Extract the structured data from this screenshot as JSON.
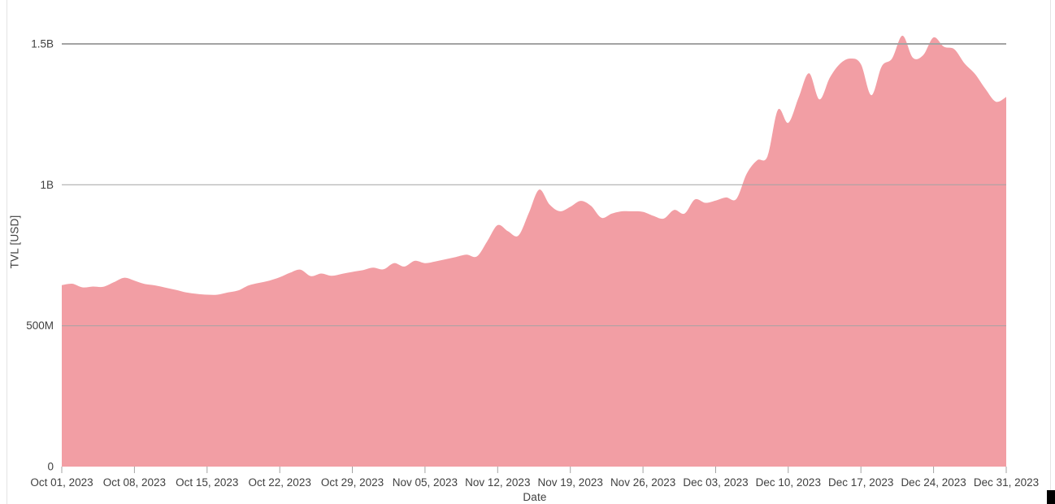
{
  "chart_data": {
    "type": "area",
    "title": "",
    "xlabel": "Date",
    "ylabel": "TVL [USD]",
    "legend": "none",
    "grid": true,
    "area_color": "#f29ea4",
    "gridline_color": "#a3a3a3",
    "axis_text_color": "#404040",
    "ylim_musd": [
      0,
      1550
    ],
    "y_ticks": [
      {
        "label": "0",
        "value": 0
      },
      {
        "label": "500M",
        "value": 500
      },
      {
        "label": "1B",
        "value": 1000
      },
      {
        "label": "1.5B",
        "value": 1500
      }
    ],
    "x_tick_labels": [
      "Oct 01, 2023",
      "Oct 08, 2023",
      "Oct 15, 2023",
      "Oct 22, 2023",
      "Oct 29, 2023",
      "Nov 05, 2023",
      "Nov 12, 2023",
      "Nov 19, 2023",
      "Nov 26, 2023",
      "Dec 03, 2023",
      "Dec 10, 2023",
      "Dec 17, 2023",
      "Dec 24, 2023",
      "Dec 31, 2023"
    ],
    "x_tick_interval_days": 7,
    "series": [
      {
        "name": "TVL",
        "unit": "USD (millions)",
        "dates": [
          "2023-10-01",
          "2023-10-02",
          "2023-10-03",
          "2023-10-04",
          "2023-10-05",
          "2023-10-06",
          "2023-10-07",
          "2023-10-08",
          "2023-10-09",
          "2023-10-10",
          "2023-10-11",
          "2023-10-12",
          "2023-10-13",
          "2023-10-14",
          "2023-10-15",
          "2023-10-16",
          "2023-10-17",
          "2023-10-18",
          "2023-10-19",
          "2023-10-20",
          "2023-10-21",
          "2023-10-22",
          "2023-10-23",
          "2023-10-24",
          "2023-10-25",
          "2023-10-26",
          "2023-10-27",
          "2023-10-28",
          "2023-10-29",
          "2023-10-30",
          "2023-10-31",
          "2023-11-01",
          "2023-11-02",
          "2023-11-03",
          "2023-11-04",
          "2023-11-05",
          "2023-11-06",
          "2023-11-07",
          "2023-11-08",
          "2023-11-09",
          "2023-11-10",
          "2023-11-11",
          "2023-11-12",
          "2023-11-13",
          "2023-11-14",
          "2023-11-15",
          "2023-11-16",
          "2023-11-17",
          "2023-11-18",
          "2023-11-19",
          "2023-11-20",
          "2023-11-21",
          "2023-11-22",
          "2023-11-23",
          "2023-11-24",
          "2023-11-25",
          "2023-11-26",
          "2023-11-27",
          "2023-11-28",
          "2023-11-29",
          "2023-11-30",
          "2023-12-01",
          "2023-12-02",
          "2023-12-03",
          "2023-12-04",
          "2023-12-05",
          "2023-12-06",
          "2023-12-07",
          "2023-12-08",
          "2023-12-09",
          "2023-12-10",
          "2023-12-11",
          "2023-12-12",
          "2023-12-13",
          "2023-12-14",
          "2023-12-15",
          "2023-12-16",
          "2023-12-17",
          "2023-12-18",
          "2023-12-19",
          "2023-12-20",
          "2023-12-21",
          "2023-12-22",
          "2023-12-23",
          "2023-12-24",
          "2023-12-25",
          "2023-12-26",
          "2023-12-27",
          "2023-12-28",
          "2023-12-29",
          "2023-12-30",
          "2023-12-31"
        ],
        "values_musd": [
          644,
          649,
          636,
          639,
          638,
          654,
          670,
          660,
          648,
          643,
          635,
          627,
          618,
          613,
          610,
          610,
          618,
          625,
          643,
          652,
          660,
          672,
          688,
          699,
          676,
          685,
          677,
          684,
          691,
          697,
          706,
          700,
          722,
          710,
          730,
          722,
          728,
          736,
          744,
          752,
          746,
          800,
          857,
          835,
          820,
          900,
          983,
          930,
          906,
          922,
          943,
          925,
          883,
          898,
          906,
          906,
          904,
          890,
          880,
          911,
          898,
          948,
          936,
          944,
          955,
          950,
          1040,
          1087,
          1101,
          1266,
          1220,
          1310,
          1396,
          1303,
          1380,
          1430,
          1448,
          1428,
          1318,
          1420,
          1448,
          1529,
          1451,
          1460,
          1523,
          1490,
          1481,
          1430,
          1393,
          1340,
          1295,
          1312
        ]
      }
    ]
  },
  "decorations": {
    "left_border_color": "#e4e4e4",
    "right_border_color": "#e4e4e4",
    "corner_marker_color": "#000000"
  }
}
